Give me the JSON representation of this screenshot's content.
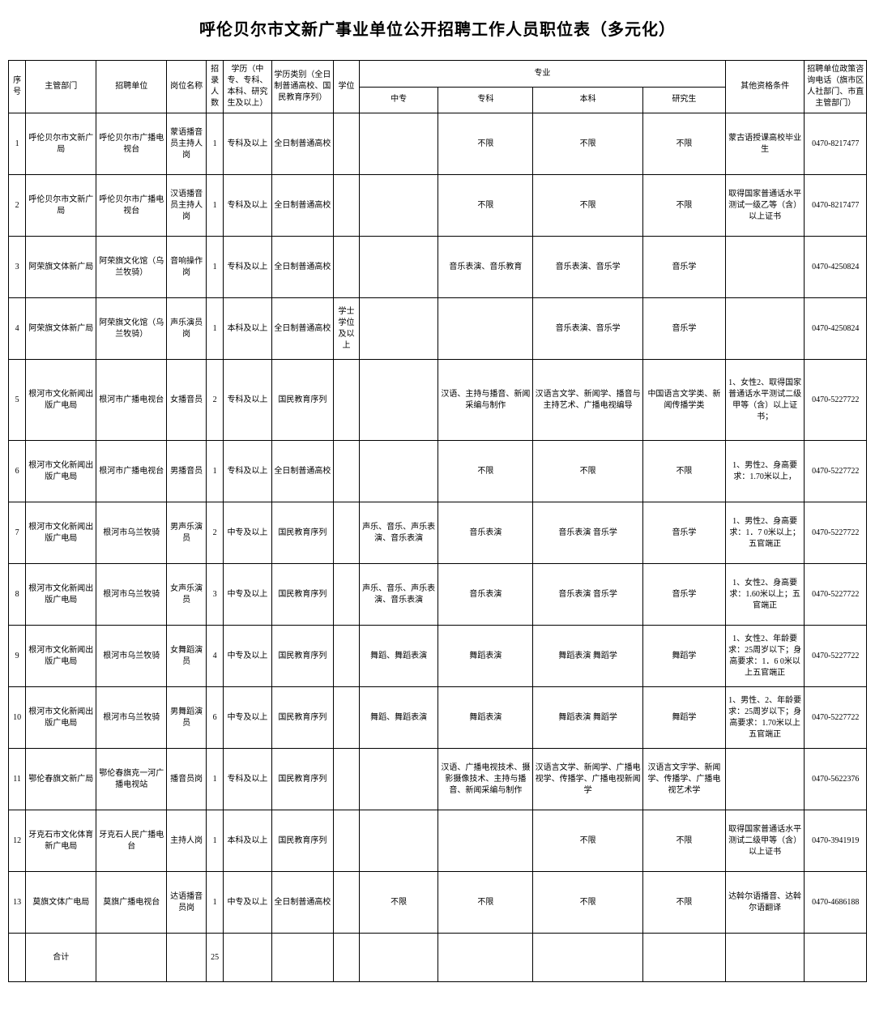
{
  "title": "呼伦贝尔市文新广事业单位公开招聘工作人员职位表（多元化）",
  "headers": {
    "seq": "序号",
    "department": "主管部门",
    "unit": "招聘单位",
    "post": "岗位名称",
    "count": "招录人数",
    "education": "学历（中专、专科、本科、研究生及以上）",
    "eduType": "学历类别（全日制普通高校、国民教育序列）",
    "degree": "学位",
    "major": "专业",
    "majorZhong": "中专",
    "majorZhuan": "专科",
    "majorBen": "本科",
    "majorYan": "研究生",
    "other": "其他资格条件",
    "phone": "招聘单位政策咨询电话（旗市区人社部门、市直主管部门）"
  },
  "rows": [
    {
      "seq": "1",
      "department": "呼伦贝尔市文新广局",
      "unit": "呼伦贝尔市广播电视台",
      "post": "蒙语播音员主持人岗",
      "count": "1",
      "education": "专科及以上",
      "eduType": "全日制普通高校",
      "degree": "",
      "zhong": "",
      "zhuan": "不限",
      "ben": "不限",
      "yan": "不限",
      "other": "蒙古语授课高校毕业生",
      "phone": "0470-8217477"
    },
    {
      "seq": "2",
      "department": "呼伦贝尔市文新广局",
      "unit": "呼伦贝尔市广播电视台",
      "post": "汉语播音员主持人岗",
      "count": "1",
      "education": "专科及以上",
      "eduType": "全日制普通高校",
      "degree": "",
      "zhong": "",
      "zhuan": "不限",
      "ben": "不限",
      "yan": "不限",
      "other": "取得国家普通话水平测试一级乙等（含）以上证书",
      "phone": "0470-8217477"
    },
    {
      "seq": "3",
      "department": "阿荣旗文体新广局",
      "unit": "阿荣旗文化馆（乌兰牧骑）",
      "post": "音响操作岗",
      "count": "1",
      "education": "专科及以上",
      "eduType": "全日制普通高校",
      "degree": "",
      "zhong": "",
      "zhuan": "音乐表演、音乐教育",
      "ben": "音乐表演、音乐学",
      "yan": "音乐学",
      "other": "",
      "phone": "0470-4250824"
    },
    {
      "seq": "4",
      "department": "阿荣旗文体新广局",
      "unit": "阿荣旗文化馆（乌兰牧骑）",
      "post": "声乐演员岗",
      "count": "1",
      "education": "本科及以上",
      "eduType": "全日制普通高校",
      "degree": "学士学位及以上",
      "zhong": "",
      "zhuan": "",
      "ben": "音乐表演、音乐学",
      "yan": "音乐学",
      "other": "",
      "phone": "0470-4250824"
    },
    {
      "seq": "5",
      "department": "根河市文化新闻出版广电局",
      "unit": "根河市广播电视台",
      "post": "女播音员",
      "count": "2",
      "education": "专科及以上",
      "eduType": "国民教育序列",
      "degree": "",
      "zhong": "",
      "zhuan": "汉语、主持与播音、新闻采编与制作",
      "ben": "汉语言文学、新闻学、播音与主持艺术、广播电视编导",
      "yan": "中国语言文学类、新闻传播学类",
      "other": "1、女性2、取得国家普通话水平测试二级甲等（含）以上证书；",
      "phone": "0470-5227722"
    },
    {
      "seq": "6",
      "department": "根河市文化新闻出版广电局",
      "unit": "根河市广播电视台",
      "post": "男播音员",
      "count": "1",
      "education": "专科及以上",
      "eduType": "全日制普通高校",
      "degree": "",
      "zhong": "",
      "zhuan": "不限",
      "ben": "不限",
      "yan": "不限",
      "other": "1、男性2、身高要求：1.70米以上，",
      "phone": "0470-5227722"
    },
    {
      "seq": "7",
      "department": "根河市文化新闻出版广电局",
      "unit": "根河市乌兰牧骑",
      "post": "男声乐演员",
      "count": "2",
      "education": "中专及以上",
      "eduType": "国民教育序列",
      "degree": "",
      "zhong": "声乐、音乐、声乐表演、音乐表演",
      "zhuan": "音乐表演",
      "ben": "音乐表演  音乐学",
      "yan": "音乐学",
      "other": "1、男性2、身高要求：1．7 0米以上；五官端正",
      "phone": "0470-5227722"
    },
    {
      "seq": "8",
      "department": "根河市文化新闻出版广电局",
      "unit": "根河市乌兰牧骑",
      "post": "女声乐演员",
      "count": "3",
      "education": "中专及以上",
      "eduType": "国民教育序列",
      "degree": "",
      "zhong": "声乐、音乐、声乐表演、音乐表演",
      "zhuan": "音乐表演",
      "ben": "音乐表演  音乐学",
      "yan": "音乐学",
      "other": "1、女性2、身高要求：1.60米以上；五官端正",
      "phone": "0470-5227722"
    },
    {
      "seq": "9",
      "department": "根河市文化新闻出版广电局",
      "unit": "根河市乌兰牧骑",
      "post": "女舞蹈演员",
      "count": "4",
      "education": "中专及以上",
      "eduType": "国民教育序列",
      "degree": "",
      "zhong": "舞蹈、舞蹈表演",
      "zhuan": "舞蹈表演",
      "ben": "舞蹈表演  舞蹈学",
      "yan": "舞蹈学",
      "other": "1、女性2、年龄要求：25周岁以下；身高要求：1．6 0米以上五官端正",
      "phone": "0470-5227722"
    },
    {
      "seq": "10",
      "department": "根河市文化新闻出版广电局",
      "unit": "根河市乌兰牧骑",
      "post": "男舞蹈演员",
      "count": "6",
      "education": "中专及以上",
      "eduType": "国民教育序列",
      "degree": "",
      "zhong": "舞蹈、舞蹈表演",
      "zhuan": "舞蹈表演",
      "ben": "舞蹈表演  舞蹈学",
      "yan": "舞蹈学",
      "other": "1、男性、2、年龄要求：25周岁以下；身高要求：1.70米以上五官端正",
      "phone": "0470-5227722"
    },
    {
      "seq": "11",
      "department": "鄂伦春旗文新广局",
      "unit": "鄂伦春旗克一河广播电视站",
      "post": "播音员岗",
      "count": "1",
      "education": "专科及以上",
      "eduType": "国民教育序列",
      "degree": "",
      "zhong": "",
      "zhuan": "汉语、广播电视技术、摄影摄像技术、主持与播音、新闻采编与制作",
      "ben": "汉语言文学、新闻学、广播电视学、传播学、广播电视新闻学",
      "yan": "汉语言文字学、新闻学、传播学、广播电视艺术学",
      "other": "",
      "phone": "0470-5622376"
    },
    {
      "seq": "12",
      "department": "牙克石市文化体育新广电局",
      "unit": "牙克石人民广播电台",
      "post": "主持人岗",
      "count": "1",
      "education": "本科及以上",
      "eduType": "国民教育序列",
      "degree": "",
      "zhong": "",
      "zhuan": "",
      "ben": "不限",
      "yan": "不限",
      "other": "取得国家普通话水平测试二级甲等（含）以上证书",
      "phone": "0470-3941919"
    },
    {
      "seq": "13",
      "department": "莫旗文体广电局",
      "unit": "莫旗广播电视台",
      "post": "达语播音员岗",
      "count": "1",
      "education": "中专及以上",
      "eduType": "全日制普通高校",
      "degree": "",
      "zhong": "不限",
      "zhuan": "不限",
      "ben": "不限",
      "yan": "不限",
      "other": "达斡尔语播音、达斡尔语翻译",
      "phone": "0470-4686188"
    }
  ],
  "footer": {
    "label": "合计",
    "total": "25"
  }
}
